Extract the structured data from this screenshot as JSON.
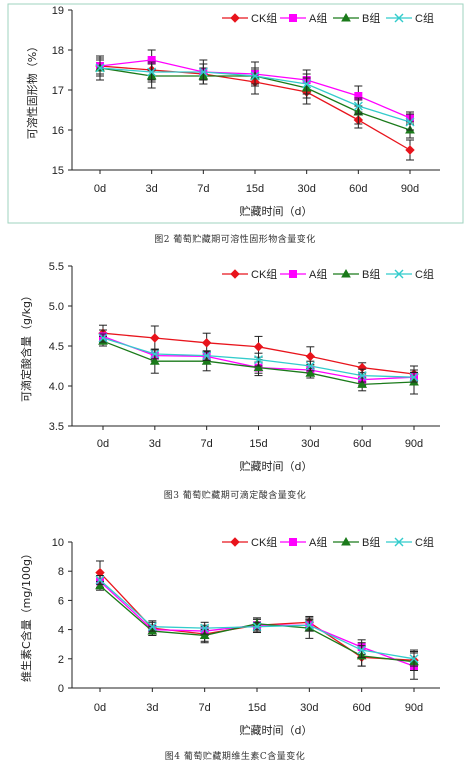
{
  "chart_data": [
    {
      "type": "line",
      "caption": "图2   葡萄贮藏期可溶性固形物含量变化",
      "xlabel": "贮藏时间（d）",
      "ylabel": "可溶性固形物（%）",
      "categories": [
        "0d",
        "3d",
        "7d",
        "15d",
        "30d",
        "60d",
        "90d"
      ],
      "ylim": [
        15,
        19
      ],
      "yticks": [
        "15",
        "16",
        "17",
        "18",
        "19"
      ],
      "ytick_values": [
        15,
        16,
        17,
        18,
        19
      ],
      "legend_position": "top-right",
      "series": [
        {
          "name": "CK组",
          "color": "#e8141c",
          "marker": "diamond",
          "values": [
            17.6,
            17.5,
            17.4,
            17.2,
            16.95,
            16.25,
            15.5
          ],
          "errors": [
            0.2,
            0.25,
            0.15,
            0.3,
            0.3,
            0.2,
            0.25
          ]
        },
        {
          "name": "A组",
          "color": "#ff00ff",
          "marker": "square",
          "values": [
            17.6,
            17.75,
            17.45,
            17.4,
            17.25,
            16.85,
            16.3
          ],
          "errors": [
            0.2,
            0.25,
            0.3,
            0.3,
            0.25,
            0.25,
            0.15
          ]
        },
        {
          "name": "B组",
          "color": "#1a7a1a",
          "marker": "triangle",
          "values": [
            17.55,
            17.35,
            17.35,
            17.35,
            17.05,
            16.45,
            16.0
          ],
          "errors": [
            0.3,
            0.3,
            0.2,
            0.2,
            0.25,
            0.3,
            0.2
          ]
        },
        {
          "name": "C组",
          "color": "#33cccc",
          "marker": "x",
          "values": [
            17.55,
            17.45,
            17.45,
            17.35,
            17.15,
            16.6,
            16.2
          ],
          "errors": [
            0.2,
            0.25,
            0.2,
            0.2,
            0.25,
            0.2,
            0.2
          ]
        }
      ]
    },
    {
      "type": "line",
      "caption": "图3   葡萄贮藏期可滴定酸含量变化",
      "xlabel": "贮藏时间（d）",
      "ylabel": "可滴定酸含量（g/kg）",
      "categories": [
        "0d",
        "3d",
        "7d",
        "15d",
        "30d",
        "60d",
        "90d"
      ],
      "ylim": [
        3.5,
        5.5
      ],
      "yticks": [
        "3.5",
        "4.0",
        "4.5",
        "5.0",
        "5.5"
      ],
      "ytick_values": [
        3.5,
        4.0,
        4.5,
        5.0,
        5.5
      ],
      "legend_position": "top-right",
      "series": [
        {
          "name": "CK组",
          "color": "#e8141c",
          "marker": "diamond",
          "values": [
            4.66,
            4.6,
            4.54,
            4.49,
            4.37,
            4.23,
            4.15
          ],
          "errors": [
            0.1,
            0.15,
            0.12,
            0.13,
            0.12,
            0.06,
            0.1
          ]
        },
        {
          "name": "A组",
          "color": "#ff00ff",
          "marker": "square",
          "values": [
            4.62,
            4.38,
            4.37,
            4.23,
            4.2,
            4.08,
            4.11
          ],
          "errors": [
            0.08,
            0.07,
            0.06,
            0.07,
            0.07,
            0.07,
            0.06
          ]
        },
        {
          "name": "B组",
          "color": "#1a7a1a",
          "marker": "triangle",
          "values": [
            4.56,
            4.31,
            4.31,
            4.23,
            4.16,
            4.02,
            4.05
          ],
          "errors": [
            0.06,
            0.15,
            0.12,
            0.1,
            0.06,
            0.08,
            0.15
          ]
        },
        {
          "name": "C组",
          "color": "#33cccc",
          "marker": "x",
          "values": [
            4.6,
            4.4,
            4.38,
            4.33,
            4.25,
            4.13,
            4.11
          ],
          "errors": [
            0.05,
            0.06,
            0.06,
            0.08,
            0.06,
            0.08,
            0.06
          ]
        }
      ]
    },
    {
      "type": "line",
      "caption": "图4   葡萄贮藏期维生素C含量变化",
      "xlabel": "贮藏时间（d）",
      "ylabel": "维生素C含量（mg/100g）",
      "categories": [
        "0d",
        "3d",
        "7d",
        "15d",
        "30d",
        "60d",
        "90d"
      ],
      "ylim": [
        0,
        10
      ],
      "yticks": [
        "0",
        "2",
        "4",
        "6",
        "8",
        "10"
      ],
      "ytick_values": [
        0,
        2,
        4,
        6,
        8,
        10
      ],
      "legend_position": "top-right",
      "series": [
        {
          "name": "CK组",
          "color": "#e8141c",
          "marker": "diamond",
          "values": [
            7.9,
            4.1,
            3.7,
            4.3,
            4.5,
            2.1,
            1.9
          ],
          "errors": [
            0.8,
            0.5,
            0.6,
            0.5,
            0.4,
            0.6,
            0.7
          ]
        },
        {
          "name": "A组",
          "color": "#ff00ff",
          "marker": "square",
          "values": [
            7.3,
            4.0,
            3.9,
            4.3,
            4.3,
            2.8,
            1.5
          ],
          "errors": [
            0.4,
            0.3,
            0.3,
            0.4,
            0.3,
            0.5,
            0.9
          ]
        },
        {
          "name": "B组",
          "color": "#1a7a1a",
          "marker": "triangle",
          "values": [
            7.0,
            3.9,
            3.6,
            4.4,
            4.1,
            2.2,
            1.8
          ],
          "errors": [
            0.3,
            0.3,
            0.4,
            0.4,
            0.7,
            0.7,
            0.6
          ]
        },
        {
          "name": "C组",
          "color": "#33cccc",
          "marker": "x",
          "values": [
            7.4,
            4.2,
            4.1,
            4.2,
            4.3,
            2.6,
            2.0
          ],
          "errors": [
            0.3,
            0.3,
            0.4,
            0.3,
            0.4,
            0.5,
            0.5
          ]
        }
      ]
    }
  ]
}
